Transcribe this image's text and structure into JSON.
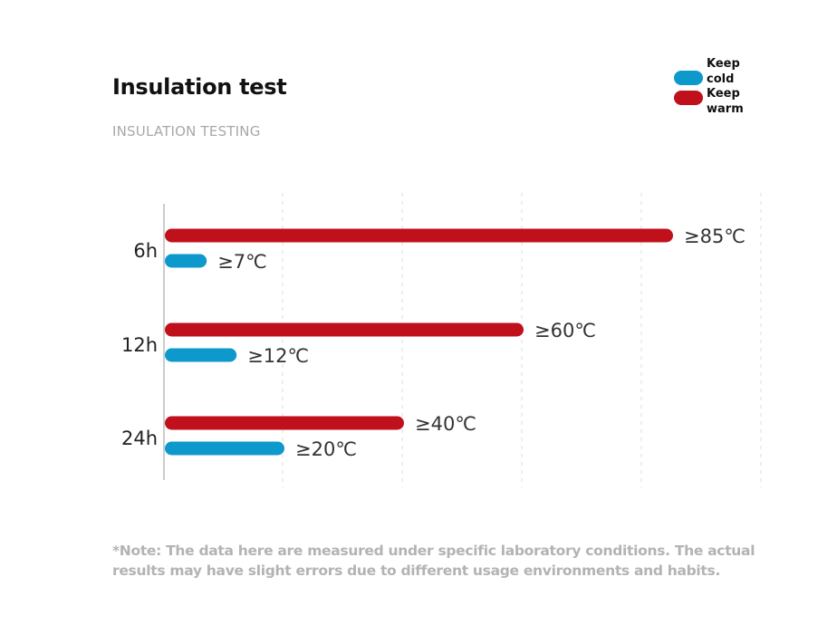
{
  "title": "Insulation test",
  "subtitle": "INSULATION TESTING",
  "legend": [
    {
      "label": "Keep cold",
      "color": "#0e99cc"
    },
    {
      "label": "Keep warm",
      "color": "#c0101c"
    }
  ],
  "note": "*Note: The data here are measured under specific laboratory conditions. The actual results may have slight errors due to different usage environments and habits.",
  "chart_data": {
    "type": "bar",
    "orientation": "horizontal",
    "title": "Insulation test",
    "subtitle": "INSULATION TESTING",
    "categories": [
      "6h",
      "12h",
      "24h"
    ],
    "series": [
      {
        "name": "Keep warm",
        "color": "#c0101c",
        "values": [
          85,
          60,
          40
        ],
        "labels": [
          "≥85℃",
          "≥60℃",
          "≥40℃"
        ]
      },
      {
        "name": "Keep cold",
        "color": "#0e99cc",
        "values": [
          7,
          12,
          20
        ],
        "labels": [
          "≥7℃",
          "≥12℃",
          "≥20℃"
        ]
      }
    ],
    "xlim": [
      0,
      100
    ],
    "grid": true,
    "legend_position": "top-right"
  }
}
